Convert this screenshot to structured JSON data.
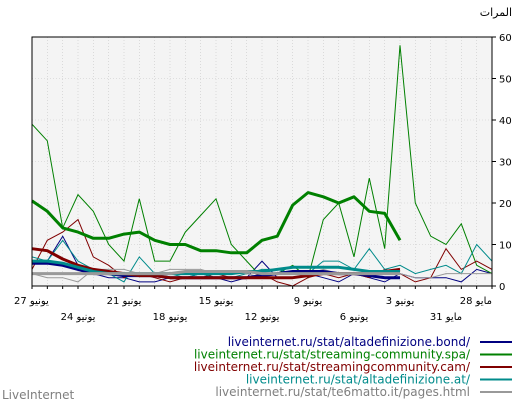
{
  "chart_data": {
    "type": "line",
    "ylabel": "المرات",
    "ylim": [
      0,
      60
    ],
    "yticks": [
      0,
      10,
      20,
      30,
      40,
      50,
      60
    ],
    "grid": true,
    "x_tick_labels": [
      {
        "i": 0,
        "label": "27 يونيو",
        "row": 1
      },
      {
        "i": 3,
        "label": "24 يونيو",
        "row": 2
      },
      {
        "i": 6,
        "label": "21 يونيو",
        "row": 1
      },
      {
        "i": 9,
        "label": "18 يونيو",
        "row": 2
      },
      {
        "i": 12,
        "label": "15 يونيو",
        "row": 1
      },
      {
        "i": 15,
        "label": "12 يونيو",
        "row": 2
      },
      {
        "i": 18,
        "label": "9 يونيو",
        "row": 1
      },
      {
        "i": 21,
        "label": "6 يونيو",
        "row": 2
      },
      {
        "i": 24,
        "label": "3 يونيو",
        "row": 1
      },
      {
        "i": 27,
        "label": "31 مايو",
        "row": 2
      },
      {
        "i": 30,
        "label": "28 مايو",
        "row": 1
      }
    ],
    "n_points": 31,
    "series": [
      {
        "name": "liveinternet.ru/stat/altadefinizione.bond/",
        "color": "#000080",
        "text_color": "#000080",
        "values": [
          6,
          6,
          12,
          5,
          3,
          2,
          2,
          1,
          1,
          2,
          2,
          3,
          2,
          1,
          2,
          6,
          2,
          2,
          3,
          2,
          1,
          3,
          2,
          1,
          3,
          2,
          2,
          2,
          1,
          4,
          3
        ]
      },
      {
        "name": "liveinternet.ru/stat/streaming-community.spa/",
        "color": "#008000",
        "text_color": "#008000",
        "values": [
          39,
          35,
          14,
          22,
          18,
          10,
          6,
          21,
          6,
          6,
          13,
          17,
          21,
          10,
          6,
          2,
          3,
          5,
          2,
          16,
          20,
          7,
          26,
          9,
          58,
          20,
          12,
          10,
          15,
          5,
          3
        ]
      },
      {
        "name": "liveinternet.ru/stat/streamingcommunity.cam/",
        "color": "#800000",
        "text_color": "#800000",
        "values": [
          4,
          11,
          13,
          16,
          7,
          5,
          2,
          3,
          2,
          1,
          2,
          2,
          3,
          2,
          2,
          3,
          1,
          0,
          2,
          3,
          2,
          3,
          2,
          4,
          3,
          1,
          2,
          9,
          4,
          6,
          4
        ]
      },
      {
        "name": "liveinternet.ru/stat/altadefinizione.at/",
        "color": "#008b8b",
        "text_color": "#008b8b",
        "values": [
          7,
          6,
          11,
          6,
          4,
          3,
          1,
          7,
          3,
          3,
          2,
          3,
          2,
          2,
          3,
          4,
          4,
          3,
          3,
          6,
          6,
          4,
          9,
          4,
          5,
          3,
          4,
          5,
          3,
          10,
          6
        ]
      },
      {
        "name": "liveinternet.ru/stat/te6matto.it/pages.html",
        "color": "#999999",
        "text_color": "#7f7f7f",
        "values": [
          3,
          2,
          2,
          1,
          4,
          4,
          4,
          3,
          3,
          4,
          4,
          4,
          3,
          3,
          3,
          2,
          3,
          3,
          3,
          4,
          3,
          3,
          3,
          3,
          3,
          2,
          2,
          3,
          3,
          3,
          3
        ]
      }
    ],
    "smoothed": [
      {
        "color": "#008000",
        "values": [
          20.5,
          18,
          14,
          13,
          11.5,
          11.5,
          12.5,
          13,
          11,
          10,
          10,
          8.5,
          8.5,
          8,
          8,
          11,
          12,
          19.5,
          22.5,
          21.5,
          20,
          21.5,
          18,
          17.5,
          11
        ]
      },
      {
        "color": "#000080",
        "values": [
          5.5,
          5.5,
          5,
          4,
          3,
          3,
          2.5,
          2.5,
          2.5,
          2,
          2,
          2,
          2,
          2,
          2,
          2.5,
          3,
          3.5,
          3.5,
          3.5,
          3,
          3,
          2.5,
          2,
          2
        ]
      },
      {
        "color": "#800000",
        "values": [
          9,
          8.5,
          6.5,
          5,
          4,
          3.5,
          3,
          2.5,
          2.5,
          2,
          2,
          2,
          2,
          2,
          2,
          2,
          2,
          2,
          2.5,
          3,
          3,
          3,
          3,
          3.5,
          4
        ]
      },
      {
        "color": "#008b8b",
        "values": [
          6,
          6,
          5.5,
          4.5,
          3.5,
          3,
          3,
          3,
          3,
          3,
          3,
          3,
          3,
          3,
          3.5,
          3.5,
          4,
          4.5,
          4.5,
          4.5,
          4.5,
          4,
          3.5,
          3.5,
          3.5
        ]
      },
      {
        "color": "#999999",
        "values": [
          3,
          3,
          3,
          3,
          3,
          3,
          3,
          3,
          3,
          3,
          3.5,
          3.5,
          3.5,
          3.5,
          3.5,
          3,
          3,
          3,
          3,
          3,
          3,
          3,
          3,
          3,
          3
        ]
      }
    ]
  },
  "footer": {
    "brand": "LiveInternet"
  }
}
